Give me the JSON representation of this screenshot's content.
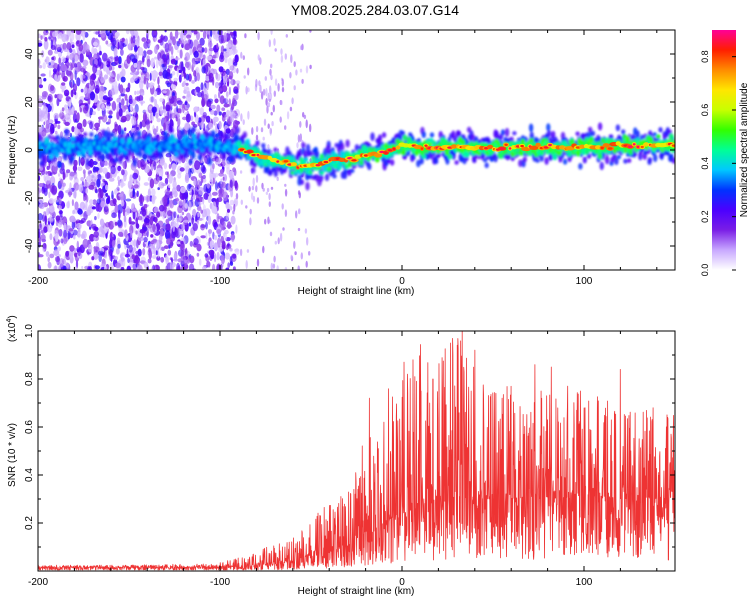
{
  "title": "YM08.2025.284.03.07.G14",
  "chart_data": [
    {
      "type": "heatmap",
      "title": "YM08.2025.284.03.07.G14",
      "xlabel": "Height of straight line (km)",
      "ylabel": "Frequency (Hz)",
      "xlim": [
        -200,
        150
      ],
      "ylim": [
        -50,
        50
      ],
      "xticks": [
        -200,
        -100,
        0,
        100
      ],
      "xtick_labels": [
        "-200",
        "-100",
        "0",
        "100"
      ],
      "yticks": [
        -40,
        -20,
        0,
        20,
        40
      ],
      "ytick_labels": [
        "-40",
        "-20",
        "0",
        "20",
        "40"
      ],
      "colorbar": {
        "label": "Normalized spectral amplitude",
        "range": [
          0.0,
          0.9
        ],
        "ticks": [
          0.0,
          0.2,
          0.4,
          0.6,
          0.8
        ],
        "tick_labels": [
          "0.0",
          "0.2",
          "0.4",
          "0.6",
          "0.8"
        ],
        "colors": [
          "#ffffff",
          "#c8a8ff",
          "#7a1ee6",
          "#4b00ff",
          "#0032ff",
          "#00c8ff",
          "#00ff96",
          "#32ff00",
          "#c8ff00",
          "#ffe600",
          "#ff8c00",
          "#ff1e00",
          "#ff0096"
        ]
      },
      "ridge": {
        "x": [
          -200,
          -180,
          -160,
          -140,
          -120,
          -100,
          -90,
          -80,
          -70,
          -60,
          -50,
          -45,
          -40,
          -35,
          -30,
          -20,
          -10,
          0,
          10,
          20,
          40,
          60,
          80,
          100,
          120,
          150
        ],
        "y": [
          1,
          1,
          1.5,
          1.5,
          2,
          2,
          1,
          -2,
          -4,
          -6,
          -7,
          -6,
          -5,
          -4,
          -4,
          -2,
          -1,
          2,
          1,
          1,
          1,
          1,
          1,
          1,
          2,
          2
        ]
      },
      "noise_region_x": [
        -200,
        -90
      ]
    },
    {
      "type": "line",
      "xlabel": "Height of straight line (km)",
      "ylabel": "SNR (10 * v/v)",
      "scale_label": "(x10",
      "scale_exponent": "4",
      "xlim": [
        -200,
        150
      ],
      "ylim": [
        0,
        1.0
      ],
      "xticks": [
        -200,
        -100,
        0,
        100
      ],
      "xtick_labels": [
        "-200",
        "-100",
        "0",
        "100"
      ],
      "yticks": [
        0.2,
        0.4,
        0.6,
        0.8,
        1.0
      ],
      "ytick_labels": [
        "0.2",
        "0.4",
        "0.6",
        "0.8",
        "1.0"
      ],
      "series": [
        {
          "name": "SNR",
          "color": "#ee3333",
          "envelope": {
            "x": [
              -200,
              -150,
              -110,
              -100,
              -90,
              -80,
              -70,
              -60,
              -50,
              -40,
              -30,
              -25,
              -20,
              -10,
              0,
              5,
              10,
              20,
              30,
              40,
              50,
              60,
              80,
              100,
              120,
              150
            ],
            "base": [
              0.015,
              0.015,
              0.015,
              0.015,
              0.02,
              0.025,
              0.03,
              0.04,
              0.06,
              0.08,
              0.1,
              0.12,
              0.15,
              0.2,
              0.25,
              0.28,
              0.3,
              0.3,
              0.3,
              0.3,
              0.3,
              0.3,
              0.3,
              0.3,
              0.3,
              0.3
            ],
            "peak": [
              0.01,
              0.01,
              0.015,
              0.02,
              0.035,
              0.06,
              0.08,
              0.1,
              0.15,
              0.22,
              0.3,
              0.38,
              0.45,
              0.55,
              0.6,
              0.7,
              0.65,
              0.6,
              0.7,
              0.55,
              0.5,
              0.5,
              0.45,
              0.45,
              0.4,
              0.35
            ]
          },
          "spikes": [
            {
              "x": -18,
              "y": 0.72
            },
            {
              "x": -10,
              "y": 0.62
            },
            {
              "x": 3,
              "y": 0.82
            },
            {
              "x": 6,
              "y": 0.88
            },
            {
              "x": 17,
              "y": 0.8
            },
            {
              "x": 28,
              "y": 0.9
            },
            {
              "x": 33,
              "y": 1.0
            },
            {
              "x": 40,
              "y": 0.92
            },
            {
              "x": 55,
              "y": 0.72
            },
            {
              "x": 73,
              "y": 0.86
            },
            {
              "x": 82,
              "y": 0.85
            },
            {
              "x": 91,
              "y": 0.77
            },
            {
              "x": 98,
              "y": 0.75
            },
            {
              "x": 120,
              "y": 0.84
            },
            {
              "x": 138,
              "y": 0.68
            },
            {
              "x": 146,
              "y": 0.64
            }
          ]
        }
      ]
    }
  ]
}
